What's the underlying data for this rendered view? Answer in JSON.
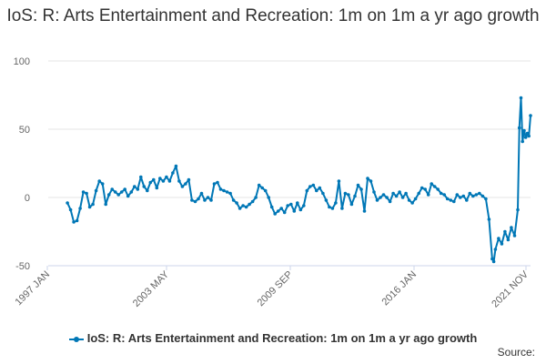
{
  "chart_data": {
    "type": "line",
    "title": "IoS: R: Arts Entertainment and Recreation: 1m on 1m a yr ago growth",
    "xlabel": "",
    "ylabel": "",
    "ylim": [
      -50,
      100
    ],
    "yticks": [
      -50,
      0,
      50,
      100
    ],
    "xlim": [
      "1997 JAN",
      "2021 NOV"
    ],
    "xticks": [
      "1997 JAN",
      "2003 MAY",
      "2009 SEP",
      "2016 JAN",
      "2021 NOV"
    ],
    "grid": true,
    "legend": "bottom",
    "colors": {
      "series": "#0077b6",
      "grid": "#e6e6e6"
    },
    "series": [
      {
        "name": "IoS: R: Arts Entertainment and Recreation: 1m on 1m a yr ago growth",
        "points": [
          [
            "1998-01",
            -4
          ],
          [
            "1998-03",
            -9
          ],
          [
            "1998-05",
            -18
          ],
          [
            "1998-07",
            -17
          ],
          [
            "1998-09",
            -8
          ],
          [
            "1998-11",
            4
          ],
          [
            "1999-01",
            3
          ],
          [
            "1999-03",
            -7
          ],
          [
            "1999-05",
            -5
          ],
          [
            "1999-07",
            5
          ],
          [
            "1999-09",
            12
          ],
          [
            "1999-11",
            10
          ],
          [
            "2000-01",
            -5
          ],
          [
            "2000-03",
            2
          ],
          [
            "2000-05",
            6
          ],
          [
            "2000-07",
            4
          ],
          [
            "2000-09",
            2
          ],
          [
            "2000-11",
            4
          ],
          [
            "2001-01",
            6
          ],
          [
            "2001-03",
            1
          ],
          [
            "2001-05",
            4
          ],
          [
            "2001-07",
            8
          ],
          [
            "2001-09",
            6
          ],
          [
            "2001-11",
            15
          ],
          [
            "2002-01",
            8
          ],
          [
            "2002-03",
            5
          ],
          [
            "2002-05",
            11
          ],
          [
            "2002-07",
            13
          ],
          [
            "2002-09",
            7
          ],
          [
            "2002-11",
            14
          ],
          [
            "2003-01",
            12
          ],
          [
            "2003-03",
            15
          ],
          [
            "2003-05",
            12
          ],
          [
            "2003-07",
            18
          ],
          [
            "2003-09",
            23
          ],
          [
            "2003-11",
            12
          ],
          [
            "2004-01",
            8
          ],
          [
            "2004-03",
            10
          ],
          [
            "2004-05",
            13
          ],
          [
            "2004-07",
            -2
          ],
          [
            "2004-09",
            -3
          ],
          [
            "2004-11",
            -1
          ],
          [
            "2005-01",
            3
          ],
          [
            "2005-03",
            -2
          ],
          [
            "2005-05",
            0
          ],
          [
            "2005-07",
            -2
          ],
          [
            "2005-09",
            10
          ],
          [
            "2005-11",
            11
          ],
          [
            "2006-01",
            6
          ],
          [
            "2006-03",
            5
          ],
          [
            "2006-05",
            4
          ],
          [
            "2006-07",
            3
          ],
          [
            "2006-09",
            -2
          ],
          [
            "2006-11",
            -4
          ],
          [
            "2007-01",
            -8
          ],
          [
            "2007-03",
            -6
          ],
          [
            "2007-05",
            -7
          ],
          [
            "2007-07",
            -5
          ],
          [
            "2007-09",
            -3
          ],
          [
            "2007-11",
            0
          ],
          [
            "2008-01",
            9
          ],
          [
            "2008-03",
            7
          ],
          [
            "2008-05",
            5
          ],
          [
            "2008-07",
            0
          ],
          [
            "2008-09",
            -7
          ],
          [
            "2008-11",
            -12
          ],
          [
            "2009-01",
            -10
          ],
          [
            "2009-03",
            -8
          ],
          [
            "2009-05",
            -11
          ],
          [
            "2009-07",
            -6
          ],
          [
            "2009-09",
            -5
          ],
          [
            "2009-11",
            -10
          ],
          [
            "2010-01",
            -4
          ],
          [
            "2010-03",
            -9
          ],
          [
            "2010-05",
            -6
          ],
          [
            "2010-07",
            5
          ],
          [
            "2010-09",
            8
          ],
          [
            "2010-11",
            9
          ],
          [
            "2011-01",
            5
          ],
          [
            "2011-03",
            7
          ],
          [
            "2011-05",
            3
          ],
          [
            "2011-07",
            -2
          ],
          [
            "2011-09",
            -7
          ],
          [
            "2011-11",
            -8
          ],
          [
            "2012-01",
            -4
          ],
          [
            "2012-03",
            12
          ],
          [
            "2012-05",
            -8
          ],
          [
            "2012-07",
            3
          ],
          [
            "2012-09",
            2
          ],
          [
            "2012-11",
            -5
          ],
          [
            "2013-01",
            1
          ],
          [
            "2013-03",
            9
          ],
          [
            "2013-05",
            6
          ],
          [
            "2013-07",
            -10
          ],
          [
            "2013-09",
            14
          ],
          [
            "2013-11",
            12
          ],
          [
            "2014-01",
            4
          ],
          [
            "2014-03",
            -2
          ],
          [
            "2014-05",
            0
          ],
          [
            "2014-07",
            2
          ],
          [
            "2014-09",
            0
          ],
          [
            "2014-11",
            -3
          ],
          [
            "2015-01",
            3
          ],
          [
            "2015-03",
            1
          ],
          [
            "2015-05",
            4
          ],
          [
            "2015-07",
            0
          ],
          [
            "2015-09",
            3
          ],
          [
            "2015-11",
            -2
          ],
          [
            "2016-01",
            -4
          ],
          [
            "2016-03",
            -1
          ],
          [
            "2016-05",
            3
          ],
          [
            "2016-07",
            7
          ],
          [
            "2016-09",
            6
          ],
          [
            "2016-11",
            2
          ],
          [
            "2017-01",
            10
          ],
          [
            "2017-03",
            8
          ],
          [
            "2017-05",
            6
          ],
          [
            "2017-07",
            3
          ],
          [
            "2017-09",
            2
          ],
          [
            "2017-11",
            -1
          ],
          [
            "2018-01",
            -2
          ],
          [
            "2018-03",
            -3
          ],
          [
            "2018-05",
            2
          ],
          [
            "2018-07",
            0
          ],
          [
            "2018-09",
            1
          ],
          [
            "2018-11",
            -2
          ],
          [
            "2019-01",
            3
          ],
          [
            "2019-03",
            1
          ],
          [
            "2019-05",
            2
          ],
          [
            "2019-07",
            3
          ],
          [
            "2019-09",
            1
          ],
          [
            "2019-11",
            -1
          ],
          [
            "2020-01",
            -16
          ],
          [
            "2020-03",
            -45
          ],
          [
            "2020-04",
            -47
          ],
          [
            "2020-05",
            -38
          ],
          [
            "2020-07",
            -30
          ],
          [
            "2020-09",
            -34
          ],
          [
            "2020-11",
            -25
          ],
          [
            "2021-01",
            -31
          ],
          [
            "2021-03",
            -22
          ],
          [
            "2021-05",
            -28
          ],
          [
            "2021-07",
            -9
          ],
          [
            "2021-08",
            51
          ],
          [
            "2021-09",
            73
          ],
          [
            "2021-10",
            41
          ],
          [
            "2021-11",
            49
          ],
          [
            "2021-12",
            44
          ],
          [
            "2022-01",
            47
          ],
          [
            "2022-02",
            45
          ],
          [
            "2022-03",
            60
          ]
        ]
      }
    ]
  },
  "legend_label": "IoS: R: Arts Entertainment and Recreation: 1m on 1m a yr ago growth",
  "source_label": "Source:"
}
